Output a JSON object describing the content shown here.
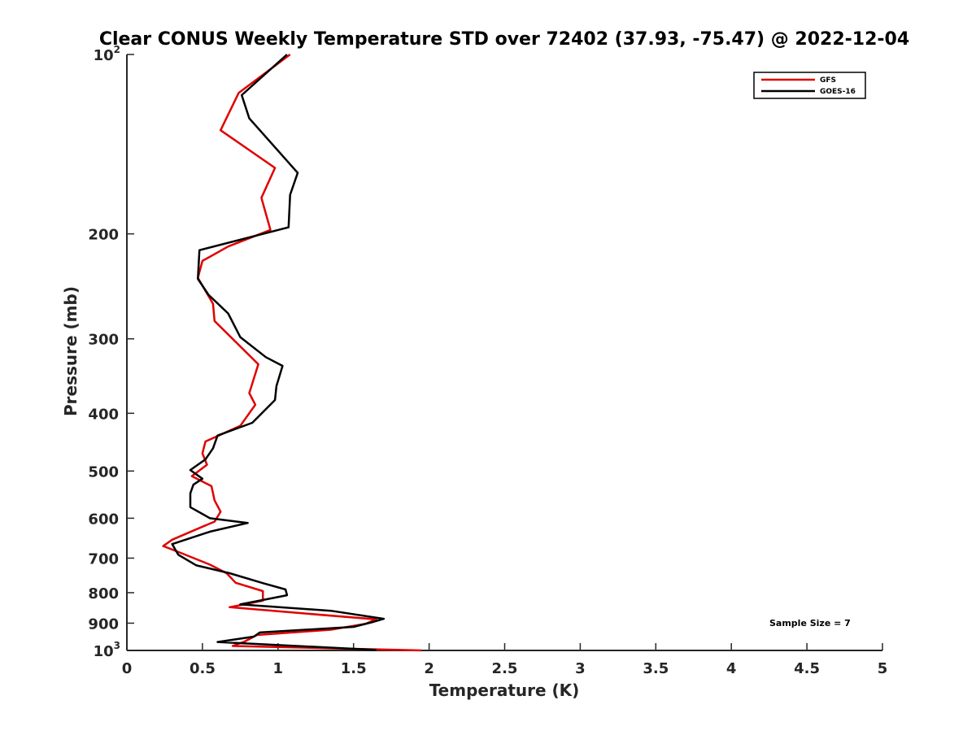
{
  "chart_data": {
    "type": "line",
    "title": "Clear CONUS Weekly Temperature STD over 72402 (37.93, -75.47) @ 2022-12-04",
    "xlabel": "Temperature (K)",
    "ylabel": "Pressure (mb)",
    "xlim": [
      0,
      5
    ],
    "ylim": [
      1000,
      100
    ],
    "yscale": "log",
    "xticks": [
      0,
      0.5,
      1,
      1.5,
      2,
      2.5,
      3,
      3.5,
      4,
      4.5,
      5
    ],
    "xtick_labels": [
      "0",
      "0.5",
      "1",
      "1.5",
      "2",
      "2.5",
      "3",
      "3.5",
      "4",
      "4.5",
      "5"
    ],
    "yticks": [
      {
        "value": 100,
        "base": "10",
        "exp": "2"
      },
      {
        "value": 200,
        "label": "200"
      },
      {
        "value": 300,
        "label": "300"
      },
      {
        "value": 400,
        "label": "400"
      },
      {
        "value": 500,
        "label": "500"
      },
      {
        "value": 600,
        "label": "600"
      },
      {
        "value": 700,
        "label": "700"
      },
      {
        "value": 800,
        "label": "800"
      },
      {
        "value": 900,
        "label": "900"
      },
      {
        "value": 1000,
        "base": "10",
        "exp": "3"
      }
    ],
    "legend_position": "top-right",
    "annotation": "Sample Size = 7",
    "series": [
      {
        "name": "GFS",
        "color": "#e00000",
        "points": [
          [
            1.08,
            100
          ],
          [
            0.74,
            116
          ],
          [
            0.62,
            134
          ],
          [
            0.98,
            155
          ],
          [
            0.89,
            174
          ],
          [
            0.95,
            197
          ],
          [
            0.67,
            210
          ],
          [
            0.5,
            222
          ],
          [
            0.47,
            237
          ],
          [
            0.57,
            262
          ],
          [
            0.58,
            280
          ],
          [
            0.87,
            331
          ],
          [
            0.81,
            370
          ],
          [
            0.85,
            387
          ],
          [
            0.75,
            420
          ],
          [
            0.52,
            446
          ],
          [
            0.5,
            467
          ],
          [
            0.53,
            488
          ],
          [
            0.43,
            510
          ],
          [
            0.56,
            530
          ],
          [
            0.58,
            560
          ],
          [
            0.62,
            585
          ],
          [
            0.58,
            608
          ],
          [
            0.5,
            620
          ],
          [
            0.3,
            652
          ],
          [
            0.24,
            668
          ],
          [
            0.37,
            688
          ],
          [
            0.55,
            718
          ],
          [
            0.66,
            742
          ],
          [
            0.72,
            770
          ],
          [
            0.9,
            795
          ],
          [
            0.9,
            825
          ],
          [
            0.68,
            846
          ],
          [
            1.2,
            868
          ],
          [
            1.65,
            887
          ],
          [
            1.58,
            902
          ],
          [
            1.35,
            923
          ],
          [
            0.86,
            942
          ],
          [
            0.78,
            966
          ],
          [
            0.7,
            983
          ],
          [
            1.95,
            1000
          ]
        ]
      },
      {
        "name": "GOES-16",
        "color": "#000000",
        "points": [
          [
            1.06,
            100
          ],
          [
            0.76,
            117
          ],
          [
            0.81,
            128
          ],
          [
            1.13,
            158
          ],
          [
            1.08,
            172
          ],
          [
            1.07,
            195
          ],
          [
            0.48,
            213
          ],
          [
            0.47,
            238
          ],
          [
            0.54,
            253
          ],
          [
            0.67,
            272
          ],
          [
            0.75,
            298
          ],
          [
            0.92,
            322
          ],
          [
            1.03,
            333
          ],
          [
            0.99,
            360
          ],
          [
            0.98,
            380
          ],
          [
            0.83,
            415
          ],
          [
            0.6,
            436
          ],
          [
            0.57,
            458
          ],
          [
            0.52,
            478
          ],
          [
            0.42,
            498
          ],
          [
            0.5,
            515
          ],
          [
            0.44,
            527
          ],
          [
            0.42,
            545
          ],
          [
            0.42,
            575
          ],
          [
            0.55,
            600
          ],
          [
            0.8,
            611
          ],
          [
            0.55,
            632
          ],
          [
            0.3,
            663
          ],
          [
            0.34,
            691
          ],
          [
            0.46,
            720
          ],
          [
            0.68,
            742
          ],
          [
            0.9,
            771
          ],
          [
            1.05,
            790
          ],
          [
            1.06,
            808
          ],
          [
            0.75,
            837
          ],
          [
            1.35,
            858
          ],
          [
            1.7,
            885
          ],
          [
            1.62,
            897
          ],
          [
            1.5,
            913
          ],
          [
            0.88,
            933
          ],
          [
            0.84,
            948
          ],
          [
            0.6,
            968
          ],
          [
            1.65,
            998
          ]
        ]
      }
    ]
  }
}
